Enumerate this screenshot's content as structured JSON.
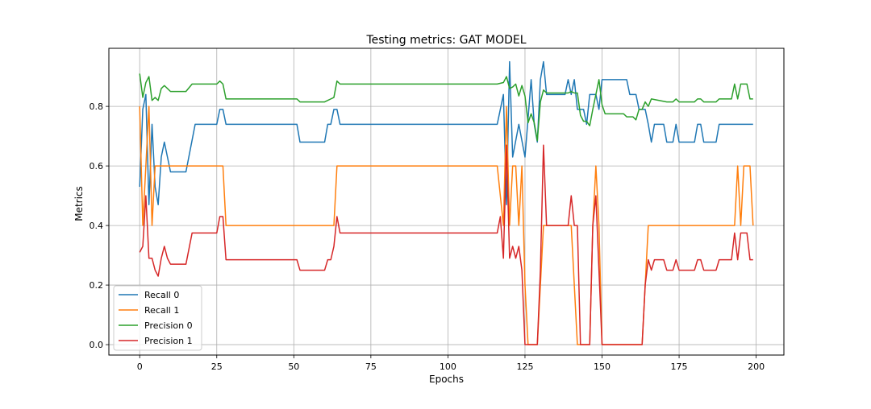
{
  "chart_data": {
    "type": "line",
    "title": "Testing metrics: GAT MODEL",
    "xlabel": "Epochs",
    "ylabel": "Metrics",
    "xlim": [
      -10,
      209
    ],
    "ylim": [
      -0.035,
      0.995
    ],
    "x_ticks": [
      0,
      25,
      50,
      75,
      100,
      125,
      150,
      175,
      200
    ],
    "x_tick_labels": [
      "0",
      "25",
      "50",
      "75",
      "100",
      "125",
      "150",
      "175",
      "200"
    ],
    "y_ticks": [
      0.0,
      0.2,
      0.4,
      0.6,
      0.8
    ],
    "y_tick_labels": [
      "0.0",
      "0.2",
      "0.4",
      "0.6",
      "0.8"
    ],
    "grid": true,
    "legend_position": "lower-left",
    "series": [
      {
        "name": "Recall 0",
        "color": "#1f77b4",
        "points": [
          [
            0,
            0.53
          ],
          [
            1,
            0.79
          ],
          [
            2,
            0.84
          ],
          [
            3,
            0.47
          ],
          [
            4,
            0.74
          ],
          [
            5,
            0.53
          ],
          [
            6,
            0.47
          ],
          [
            7,
            0.63
          ],
          [
            8,
            0.68
          ],
          [
            9,
            0.63
          ],
          [
            10,
            0.58
          ],
          [
            15,
            0.58
          ],
          [
            18,
            0.74
          ],
          [
            25,
            0.74
          ],
          [
            26,
            0.79
          ],
          [
            27,
            0.79
          ],
          [
            28,
            0.74
          ],
          [
            51,
            0.74
          ],
          [
            52,
            0.68
          ],
          [
            60,
            0.68
          ],
          [
            61,
            0.74
          ],
          [
            62,
            0.74
          ],
          [
            63,
            0.79
          ],
          [
            64,
            0.79
          ],
          [
            65,
            0.74
          ],
          [
            116,
            0.74
          ],
          [
            118,
            0.84
          ],
          [
            119,
            0.47
          ],
          [
            120,
            0.95
          ],
          [
            121,
            0.63
          ],
          [
            123,
            0.74
          ],
          [
            125,
            0.63
          ],
          [
            127,
            0.89
          ],
          [
            128,
            0.74
          ],
          [
            129,
            0.68
          ],
          [
            130,
            0.89
          ],
          [
            131,
            0.95
          ],
          [
            132,
            0.84
          ],
          [
            138,
            0.84
          ],
          [
            139,
            0.89
          ],
          [
            140,
            0.84
          ],
          [
            141,
            0.89
          ],
          [
            142,
            0.79
          ],
          [
            144,
            0.79
          ],
          [
            145,
            0.74
          ],
          [
            146,
            0.84
          ],
          [
            148,
            0.84
          ],
          [
            149,
            0.79
          ],
          [
            150,
            0.89
          ],
          [
            158,
            0.89
          ],
          [
            159,
            0.84
          ],
          [
            161,
            0.84
          ],
          [
            162,
            0.79
          ],
          [
            164,
            0.79
          ],
          [
            165,
            0.74
          ],
          [
            166,
            0.68
          ],
          [
            167,
            0.74
          ],
          [
            170,
            0.74
          ],
          [
            171,
            0.68
          ],
          [
            173,
            0.68
          ],
          [
            174,
            0.74
          ],
          [
            175,
            0.68
          ],
          [
            180,
            0.68
          ],
          [
            181,
            0.74
          ],
          [
            182,
            0.74
          ],
          [
            183,
            0.68
          ],
          [
            187,
            0.68
          ],
          [
            188,
            0.74
          ],
          [
            199,
            0.74
          ]
        ]
      },
      {
        "name": "Recall 1",
        "color": "#ff7f0e",
        "points": [
          [
            0,
            0.8
          ],
          [
            1,
            0.4
          ],
          [
            2,
            0.6
          ],
          [
            3,
            0.8
          ],
          [
            4,
            0.4
          ],
          [
            5,
            0.6
          ],
          [
            27,
            0.6
          ],
          [
            28,
            0.4
          ],
          [
            63,
            0.4
          ],
          [
            64,
            0.6
          ],
          [
            116,
            0.6
          ],
          [
            118,
            0.4
          ],
          [
            119,
            0.8
          ],
          [
            120,
            0.4
          ],
          [
            121,
            0.6
          ],
          [
            122,
            0.6
          ],
          [
            123,
            0.4
          ],
          [
            124,
            0.6
          ],
          [
            125,
            0.2
          ],
          [
            126,
            0.0
          ],
          [
            129,
            0.0
          ],
          [
            130,
            0.2
          ],
          [
            131,
            0.4
          ],
          [
            139,
            0.4
          ],
          [
            140,
            0.4
          ],
          [
            141,
            0.2
          ],
          [
            142,
            0.0
          ],
          [
            146,
            0.0
          ],
          [
            147,
            0.4
          ],
          [
            148,
            0.6
          ],
          [
            149,
            0.4
          ],
          [
            150,
            0.0
          ],
          [
            163,
            0.0
          ],
          [
            164,
            0.2
          ],
          [
            165,
            0.4
          ],
          [
            193,
            0.4
          ],
          [
            194,
            0.6
          ],
          [
            195,
            0.4
          ],
          [
            196,
            0.6
          ],
          [
            198,
            0.6
          ],
          [
            199,
            0.4
          ]
        ]
      },
      {
        "name": "Precision 0",
        "color": "#2ca02c",
        "points": [
          [
            0,
            0.91
          ],
          [
            1,
            0.83
          ],
          [
            2,
            0.88
          ],
          [
            3,
            0.9
          ],
          [
            4,
            0.82
          ],
          [
            5,
            0.83
          ],
          [
            6,
            0.82
          ],
          [
            7,
            0.86
          ],
          [
            8,
            0.87
          ],
          [
            9,
            0.86
          ],
          [
            10,
            0.85
          ],
          [
            15,
            0.85
          ],
          [
            17,
            0.875
          ],
          [
            25,
            0.875
          ],
          [
            26,
            0.885
          ],
          [
            27,
            0.875
          ],
          [
            28,
            0.825
          ],
          [
            51,
            0.825
          ],
          [
            52,
            0.815
          ],
          [
            60,
            0.815
          ],
          [
            61,
            0.82
          ],
          [
            62,
            0.825
          ],
          [
            63,
            0.83
          ],
          [
            64,
            0.885
          ],
          [
            65,
            0.875
          ],
          [
            116,
            0.875
          ],
          [
            118,
            0.88
          ],
          [
            119,
            0.9
          ],
          [
            120,
            0.86
          ],
          [
            121,
            0.865
          ],
          [
            122,
            0.875
          ],
          [
            123,
            0.835
          ],
          [
            124,
            0.87
          ],
          [
            125,
            0.835
          ],
          [
            126,
            0.745
          ],
          [
            127,
            0.775
          ],
          [
            128,
            0.745
          ],
          [
            129,
            0.685
          ],
          [
            130,
            0.815
          ],
          [
            131,
            0.855
          ],
          [
            132,
            0.845
          ],
          [
            139,
            0.845
          ],
          [
            140,
            0.85
          ],
          [
            141,
            0.845
          ],
          [
            142,
            0.845
          ],
          [
            143,
            0.77
          ],
          [
            144,
            0.75
          ],
          [
            145,
            0.75
          ],
          [
            146,
            0.735
          ],
          [
            147,
            0.79
          ],
          [
            149,
            0.89
          ],
          [
            150,
            0.805
          ],
          [
            151,
            0.775
          ],
          [
            157,
            0.775
          ],
          [
            158,
            0.765
          ],
          [
            160,
            0.765
          ],
          [
            161,
            0.755
          ],
          [
            162,
            0.79
          ],
          [
            163,
            0.79
          ],
          [
            164,
            0.815
          ],
          [
            165,
            0.8
          ],
          [
            166,
            0.825
          ],
          [
            171,
            0.815
          ],
          [
            173,
            0.815
          ],
          [
            174,
            0.825
          ],
          [
            175,
            0.815
          ],
          [
            180,
            0.815
          ],
          [
            181,
            0.825
          ],
          [
            182,
            0.825
          ],
          [
            183,
            0.815
          ],
          [
            187,
            0.815
          ],
          [
            188,
            0.825
          ],
          [
            192,
            0.825
          ],
          [
            193,
            0.875
          ],
          [
            194,
            0.825
          ],
          [
            195,
            0.875
          ],
          [
            197,
            0.875
          ],
          [
            198,
            0.825
          ],
          [
            199,
            0.825
          ]
        ]
      },
      {
        "name": "Precision 1",
        "color": "#d62728",
        "points": [
          [
            0,
            0.31
          ],
          [
            1,
            0.33
          ],
          [
            2,
            0.5
          ],
          [
            3,
            0.29
          ],
          [
            4,
            0.29
          ],
          [
            5,
            0.25
          ],
          [
            6,
            0.23
          ],
          [
            7,
            0.29
          ],
          [
            8,
            0.33
          ],
          [
            9,
            0.29
          ],
          [
            10,
            0.27
          ],
          [
            15,
            0.27
          ],
          [
            17,
            0.375
          ],
          [
            25,
            0.375
          ],
          [
            26,
            0.43
          ],
          [
            27,
            0.43
          ],
          [
            28,
            0.285
          ],
          [
            51,
            0.285
          ],
          [
            52,
            0.25
          ],
          [
            60,
            0.25
          ],
          [
            61,
            0.285
          ],
          [
            62,
            0.285
          ],
          [
            63,
            0.33
          ],
          [
            64,
            0.43
          ],
          [
            65,
            0.375
          ],
          [
            116,
            0.375
          ],
          [
            117,
            0.43
          ],
          [
            118,
            0.29
          ],
          [
            119,
            0.67
          ],
          [
            120,
            0.29
          ],
          [
            121,
            0.33
          ],
          [
            122,
            0.29
          ],
          [
            123,
            0.33
          ],
          [
            124,
            0.25
          ],
          [
            125,
            0.0
          ],
          [
            129,
            0.0
          ],
          [
            130,
            0.25
          ],
          [
            131,
            0.67
          ],
          [
            132,
            0.4
          ],
          [
            139,
            0.4
          ],
          [
            140,
            0.5
          ],
          [
            141,
            0.4
          ],
          [
            142,
            0.4
          ],
          [
            143,
            0.0
          ],
          [
            146,
            0.0
          ],
          [
            147,
            0.4
          ],
          [
            148,
            0.5
          ],
          [
            149,
            0.25
          ],
          [
            150,
            0.0
          ],
          [
            163,
            0.0
          ],
          [
            164,
            0.2
          ],
          [
            165,
            0.285
          ],
          [
            166,
            0.25
          ],
          [
            167,
            0.285
          ],
          [
            170,
            0.285
          ],
          [
            171,
            0.25
          ],
          [
            173,
            0.25
          ],
          [
            174,
            0.285
          ],
          [
            175,
            0.25
          ],
          [
            180,
            0.25
          ],
          [
            181,
            0.285
          ],
          [
            182,
            0.285
          ],
          [
            183,
            0.25
          ],
          [
            187,
            0.25
          ],
          [
            188,
            0.285
          ],
          [
            192,
            0.285
          ],
          [
            193,
            0.375
          ],
          [
            194,
            0.285
          ],
          [
            195,
            0.375
          ],
          [
            197,
            0.375
          ],
          [
            198,
            0.285
          ],
          [
            199,
            0.285
          ]
        ]
      }
    ]
  }
}
